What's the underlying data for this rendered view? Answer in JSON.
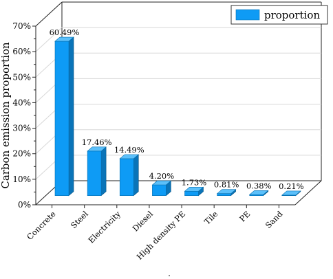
{
  "chart_data": {
    "type": "bar",
    "title": "",
    "xlabel": "",
    "ylabel": "Carbon emission proportion",
    "categories": [
      "Concrete",
      "Steel",
      "Electricity",
      "Diesel",
      "High density PE",
      "Tile",
      "PE",
      "Sand"
    ],
    "series": [
      {
        "name": "proportion",
        "values": [
          60.49,
          17.46,
          14.49,
          4.2,
          1.73,
          0.81,
          0.38,
          0.21
        ],
        "labels": [
          "60.49%",
          "17.46%",
          "14.49%",
          "4.20%",
          "1.73%",
          "0.81%",
          "0.38%",
          "0.21%"
        ]
      }
    ],
    "ylim": [
      0,
      70
    ],
    "yticks": [
      "0%",
      "10%",
      "20%",
      "30%",
      "40%",
      "50%",
      "60%",
      "70%"
    ],
    "grid": true,
    "legend_position": "top-right",
    "bar_color": "#0E9BF5",
    "footnote": "."
  }
}
